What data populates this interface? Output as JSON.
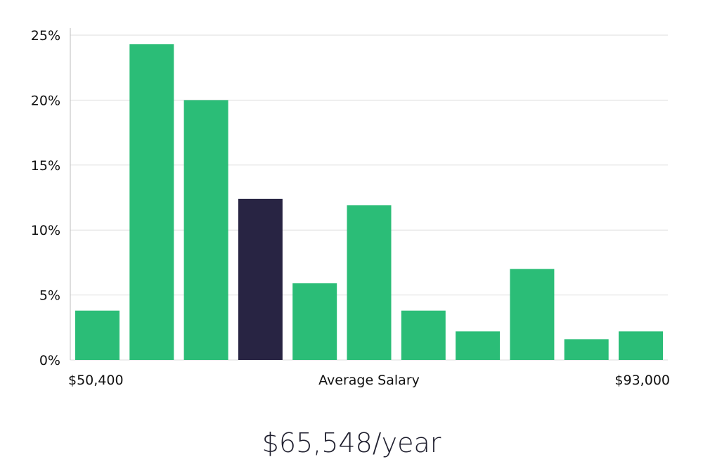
{
  "chart_data": {
    "type": "bar",
    "values": [
      3.8,
      24.3,
      20.0,
      12.4,
      5.9,
      11.9,
      3.8,
      2.2,
      7.0,
      1.6,
      2.2
    ],
    "highlight_index": 3,
    "y_ticks": [
      "0%",
      "5%",
      "10%",
      "15%",
      "20%",
      "25%"
    ],
    "y_tick_values": [
      0,
      5,
      10,
      15,
      20,
      25
    ],
    "ylim": [
      0,
      25
    ],
    "x_min_label": "$50,400",
    "x_max_label": "$93,000",
    "xlabel": "Average Salary",
    "grid": true,
    "colors": {
      "bar": "#2bbd77",
      "highlight": "#282443"
    }
  },
  "headline": "$65,548/year"
}
